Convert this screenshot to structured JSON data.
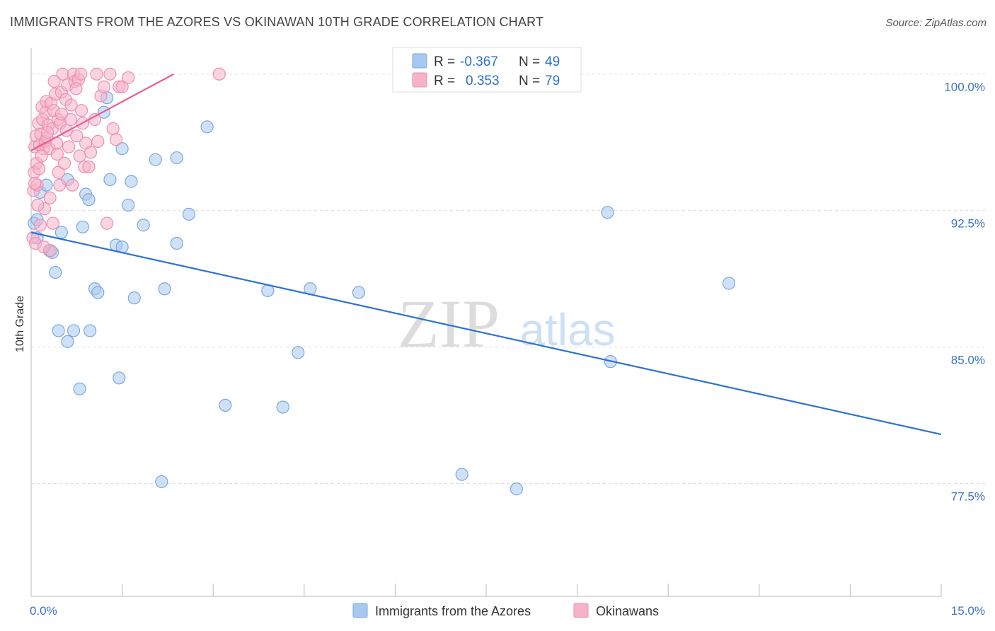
{
  "header": {
    "title": "IMMIGRANTS FROM THE AZORES VS OKINAWAN 10TH GRADE CORRELATION CHART",
    "source": "Source: ZipAtlas.com"
  },
  "watermark": {
    "zip": "ZIP",
    "atlas": "atlas"
  },
  "legend_box": {
    "rows": [
      {
        "r_label": "R =",
        "r_value": "-0.367",
        "n_label": "N =",
        "n_value": "49",
        "color": "#a8c8f0"
      },
      {
        "r_label": "R =",
        "r_value": "0.353",
        "n_label": "N =",
        "n_value": "79",
        "color": "#f5b3c8"
      }
    ]
  },
  "colors": {
    "blue_fill": "#a8c8f0",
    "blue_stroke": "#7aa8e0",
    "blue_line": "#2e72d2",
    "pink_fill": "#f5b3c8",
    "pink_stroke": "#ee8fb0",
    "pink_line": "#e8608a",
    "tick_text": "#3b72c4",
    "grid": "#dddddd"
  },
  "chart_data": {
    "type": "scatter",
    "title": "IMMIGRANTS FROM THE AZORES VS OKINAWAN 10TH GRADE CORRELATION CHART",
    "xlabel": "",
    "ylabel": "10th Grade",
    "xlim": [
      0,
      15
    ],
    "ylim": [
      71.3,
      101
    ],
    "x_tick_labels": [
      "0.0%",
      "15.0%"
    ],
    "y_ticks": [
      77.5,
      85.0,
      92.5,
      100.0
    ],
    "y_tick_labels": [
      "77.5%",
      "85.0%",
      "92.5%",
      "100.0%"
    ],
    "grid": true,
    "legend_position": "bottom-center",
    "series": [
      {
        "name": "Immigrants from the Azores",
        "color": "#a8c8f0",
        "r": -0.367,
        "n": 49,
        "trend": {
          "x": [
            0,
            15
          ],
          "y": [
            91.3,
            80.2
          ]
        },
        "points": [
          [
            0.05,
            91.8
          ],
          [
            0.1,
            92.0
          ],
          [
            0.15,
            93.5
          ],
          [
            0.25,
            93.9
          ],
          [
            0.3,
            90.3
          ],
          [
            0.35,
            90.2
          ],
          [
            0.4,
            89.1
          ],
          [
            0.45,
            85.9
          ],
          [
            0.5,
            91.3
          ],
          [
            0.6,
            85.3
          ],
          [
            0.6,
            94.2
          ],
          [
            0.7,
            85.9
          ],
          [
            0.8,
            82.7
          ],
          [
            0.85,
            91.6
          ],
          [
            0.9,
            93.4
          ],
          [
            0.95,
            93.1
          ],
          [
            0.97,
            85.9
          ],
          [
            1.05,
            88.2
          ],
          [
            1.1,
            88.0
          ],
          [
            1.2,
            97.9
          ],
          [
            1.25,
            98.7
          ],
          [
            1.3,
            94.2
          ],
          [
            1.4,
            90.6
          ],
          [
            1.45,
            83.3
          ],
          [
            1.5,
            95.9
          ],
          [
            1.5,
            90.5
          ],
          [
            1.6,
            92.8
          ],
          [
            1.65,
            94.1
          ],
          [
            1.7,
            87.7
          ],
          [
            1.85,
            91.7
          ],
          [
            2.05,
            95.3
          ],
          [
            2.15,
            77.6
          ],
          [
            2.2,
            88.2
          ],
          [
            2.4,
            90.7
          ],
          [
            2.4,
            95.4
          ],
          [
            2.6,
            92.3
          ],
          [
            2.9,
            97.1
          ],
          [
            3.2,
            81.8
          ],
          [
            3.9,
            88.1
          ],
          [
            4.15,
            81.7
          ],
          [
            4.4,
            84.7
          ],
          [
            4.6,
            88.2
          ],
          [
            5.4,
            88.0
          ],
          [
            7.1,
            78.0
          ],
          [
            8.0,
            77.2
          ],
          [
            9.5,
            92.4
          ],
          [
            9.55,
            84.2
          ],
          [
            11.5,
            88.5
          ],
          [
            0.1,
            91.0
          ]
        ]
      },
      {
        "name": "Okinawans",
        "color": "#f5b3c8",
        "r": 0.353,
        "n": 79,
        "trend": {
          "x": [
            0,
            2.35
          ],
          "y": [
            95.8,
            100.0
          ]
        },
        "points": [
          [
            0.03,
            91.0
          ],
          [
            0.04,
            93.6
          ],
          [
            0.05,
            94.6
          ],
          [
            0.06,
            96.0
          ],
          [
            0.07,
            90.7
          ],
          [
            0.08,
            96.6
          ],
          [
            0.09,
            95.1
          ],
          [
            0.1,
            93.9
          ],
          [
            0.12,
            97.3
          ],
          [
            0.13,
            94.8
          ],
          [
            0.14,
            96.1
          ],
          [
            0.15,
            91.7
          ],
          [
            0.16,
            96.7
          ],
          [
            0.18,
            98.2
          ],
          [
            0.19,
            97.5
          ],
          [
            0.2,
            95.9
          ],
          [
            0.22,
            92.6
          ],
          [
            0.23,
            96.3
          ],
          [
            0.24,
            97.9
          ],
          [
            0.25,
            98.5
          ],
          [
            0.26,
            96.5
          ],
          [
            0.28,
            97.2
          ],
          [
            0.3,
            95.9
          ],
          [
            0.32,
            90.3
          ],
          [
            0.33,
            98.4
          ],
          [
            0.35,
            97.0
          ],
          [
            0.36,
            91.8
          ],
          [
            0.38,
            99.6
          ],
          [
            0.4,
            98.9
          ],
          [
            0.42,
            96.2
          ],
          [
            0.44,
            97.5
          ],
          [
            0.45,
            94.6
          ],
          [
            0.47,
            93.9
          ],
          [
            0.48,
            97.3
          ],
          [
            0.5,
            99.0
          ],
          [
            0.52,
            100.0
          ],
          [
            0.55,
            95.1
          ],
          [
            0.57,
            98.6
          ],
          [
            0.6,
            99.4
          ],
          [
            0.62,
            96.0
          ],
          [
            0.65,
            97.5
          ],
          [
            0.68,
            93.9
          ],
          [
            0.7,
            100.0
          ],
          [
            0.72,
            99.6
          ],
          [
            0.75,
            96.6
          ],
          [
            0.78,
            99.7
          ],
          [
            0.8,
            95.5
          ],
          [
            0.82,
            100.0
          ],
          [
            0.85,
            97.3
          ],
          [
            0.88,
            94.9
          ],
          [
            0.9,
            96.2
          ],
          [
            0.95,
            94.9
          ],
          [
            1.05,
            97.5
          ],
          [
            1.1,
            96.3
          ],
          [
            1.15,
            98.8
          ],
          [
            1.2,
            99.3
          ],
          [
            1.25,
            91.8
          ],
          [
            1.3,
            100.0
          ],
          [
            1.35,
            97.0
          ],
          [
            1.4,
            96.4
          ],
          [
            1.45,
            99.3
          ],
          [
            1.5,
            99.3
          ],
          [
            3.1,
            100.0
          ],
          [
            0.06,
            94.0
          ],
          [
            0.11,
            92.8
          ],
          [
            0.17,
            95.5
          ],
          [
            0.21,
            90.5
          ],
          [
            0.27,
            96.8
          ],
          [
            0.31,
            93.2
          ],
          [
            0.37,
            98.0
          ],
          [
            0.43,
            95.6
          ],
          [
            0.5,
            97.8
          ],
          [
            0.58,
            96.9
          ],
          [
            0.66,
            98.3
          ],
          [
            0.74,
            99.2
          ],
          [
            0.83,
            98.0
          ],
          [
            0.98,
            95.7
          ],
          [
            1.08,
            100.0
          ],
          [
            1.6,
            99.8
          ]
        ]
      }
    ]
  }
}
